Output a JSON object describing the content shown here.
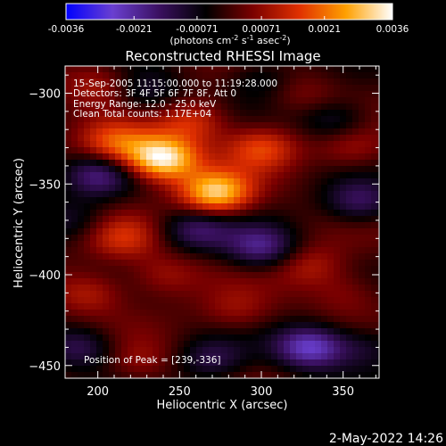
{
  "chart_data": {
    "type": "heatmap",
    "title": "Reconstructed RHESSI Image",
    "xlabel": "Heliocentric X (arcsec)",
    "ylabel": "Heliocentric Y (arcsec)",
    "xlim": [
      180,
      372
    ],
    "ylim": [
      -457,
      -285
    ],
    "x_ticks": [
      "200",
      "250",
      "300",
      "350"
    ],
    "y_ticks": [
      "-300",
      "-350",
      "-400",
      "-450"
    ],
    "colorbar": {
      "ticks": [
        "-0.0036",
        "-0.0021",
        "-0.00071",
        "0.00071",
        "0.0021",
        "0.0036"
      ],
      "range": [
        -0.0036,
        0.0036
      ],
      "label": "(photons cm",
      "label_sup1": "-2",
      "label_mid": " s",
      "label_sup2": "-1",
      "label_end": " asec",
      "label_sup3": "-2",
      "label_close": ")",
      "colors": [
        "#0000ff",
        "#6a3fd0",
        "#3a1060",
        "#000000",
        "#7a0000",
        "#e03000",
        "#ffa000",
        "#ffffff"
      ]
    },
    "annotations": [
      "15-Sep-2005 11:15:00.000 to 11:19:28.000",
      "Detectors: 3F 4F 5F 6F 7F 8F, Att 0",
      "Energy Range: 12.0 - 25.0 keV",
      "Clean     Total counts: 1.17E+04"
    ],
    "peak_label": "Position of Peak = [239,-336]",
    "peak": [
      239,
      -336
    ],
    "sources": [
      {
        "x": 239,
        "y": -336,
        "value": 0.0036
      },
      {
        "x": 272,
        "y": -355,
        "value": 0.003
      },
      {
        "x": 210,
        "y": -328,
        "value": 0.0018
      },
      {
        "x": 300,
        "y": -330,
        "value": 0.0016
      },
      {
        "x": 258,
        "y": -316,
        "value": 0.0014
      },
      {
        "x": 215,
        "y": -380,
        "value": 0.0012
      },
      {
        "x": 195,
        "y": -410,
        "value": 0.0011
      },
      {
        "x": 330,
        "y": -395,
        "value": 0.001
      },
      {
        "x": 240,
        "y": -400,
        "value": 0.0009
      },
      {
        "x": 355,
        "y": -330,
        "value": 0.0009
      },
      {
        "x": 200,
        "y": -295,
        "value": 0.001
      },
      {
        "x": 285,
        "y": -420,
        "value": 0.0008
      },
      {
        "x": 225,
        "y": -448,
        "value": 0.0007
      },
      {
        "x": 325,
        "y": -300,
        "value": 0.0006
      },
      {
        "x": 352,
        "y": -410,
        "value": 0.0007
      },
      {
        "x": 330,
        "y": -440,
        "value": -0.0025
      },
      {
        "x": 300,
        "y": -385,
        "value": -0.0018
      },
      {
        "x": 200,
        "y": -345,
        "value": -0.0016
      },
      {
        "x": 260,
        "y": -375,
        "value": -0.0015
      },
      {
        "x": 360,
        "y": -360,
        "value": -0.0015
      },
      {
        "x": 345,
        "y": -315,
        "value": -0.0012
      },
      {
        "x": 190,
        "y": -440,
        "value": -0.0014
      },
      {
        "x": 270,
        "y": -447,
        "value": -0.0012
      },
      {
        "x": 230,
        "y": -300,
        "value": -0.001
      },
      {
        "x": 300,
        "y": -292,
        "value": -0.0009
      },
      {
        "x": 365,
        "y": -440,
        "value": -0.001
      },
      {
        "x": 185,
        "y": -370,
        "value": -0.0009
      }
    ]
  },
  "footer": {
    "date": "2-May-2022 14:26"
  }
}
